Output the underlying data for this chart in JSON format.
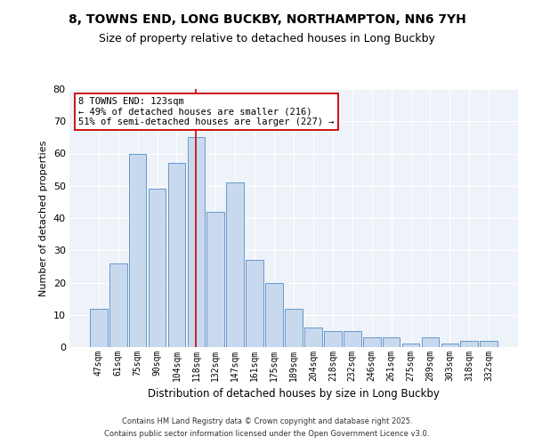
{
  "title1": "8, TOWNS END, LONG BUCKBY, NORTHAMPTON, NN6 7YH",
  "title2": "Size of property relative to detached houses in Long Buckby",
  "xlabel": "Distribution of detached houses by size in Long Buckby",
  "ylabel": "Number of detached properties",
  "categories": [
    "47sqm",
    "61sqm",
    "75sqm",
    "90sqm",
    "104sqm",
    "118sqm",
    "132sqm",
    "147sqm",
    "161sqm",
    "175sqm",
    "189sqm",
    "204sqm",
    "218sqm",
    "232sqm",
    "246sqm",
    "261sqm",
    "275sqm",
    "289sqm",
    "303sqm",
    "318sqm",
    "332sqm"
  ],
  "values": [
    12,
    26,
    60,
    49,
    57,
    65,
    42,
    51,
    27,
    20,
    12,
    6,
    5,
    5,
    3,
    3,
    1,
    3,
    1,
    2,
    2
  ],
  "bar_color": "#c9d9ed",
  "bar_edge_color": "#6699cc",
  "vline_index": 5,
  "vline_color": "#cc0000",
  "annotation_text": "8 TOWNS END: 123sqm\n← 49% of detached houses are smaller (216)\n51% of semi-detached houses are larger (227) →",
  "annotation_box_color": "#ffffff",
  "annotation_box_edge": "#cc0000",
  "ylim": [
    0,
    80
  ],
  "yticks": [
    0,
    10,
    20,
    30,
    40,
    50,
    60,
    70,
    80
  ],
  "footer_line1": "Contains HM Land Registry data © Crown copyright and database right 2025.",
  "footer_line2": "Contains public sector information licensed under the Open Government Licence v3.0.",
  "bg_color": "#eef2f9",
  "fig_bg_color": "#ffffff",
  "title1_fontsize": 10,
  "title2_fontsize": 9
}
